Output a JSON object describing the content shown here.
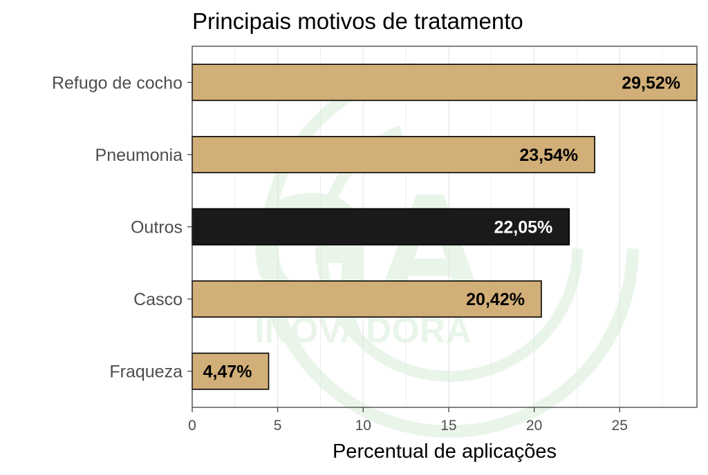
{
  "chart_data": {
    "type": "bar",
    "orientation": "horizontal",
    "title": "Principais motivos de tratamento",
    "xlabel": "Percentual de aplicações",
    "ylabel": "",
    "categories": [
      "Refugo de cocho",
      "Pneumonia",
      "Outros",
      "Casco",
      "Fraqueza"
    ],
    "values": [
      29.52,
      23.54,
      22.05,
      20.42,
      4.47
    ],
    "data_labels": [
      "29,52%",
      "23,54%",
      "22,05%",
      "20,42%",
      "4,47%"
    ],
    "highlight_category": "Outros",
    "colors": {
      "bar": "#D2AF78",
      "highlight_bar": "#1A1A1A",
      "label": "#000000",
      "highlight_label": "#FFFFFF",
      "grid": "#EBEBEB",
      "watermark": "#D9EDD9"
    },
    "xlim": [
      0,
      29.52
    ],
    "xticks": [
      0,
      5,
      10,
      15,
      20,
      25
    ],
    "grid": true,
    "legend": "none",
    "watermark_text": "INOVADORA"
  }
}
